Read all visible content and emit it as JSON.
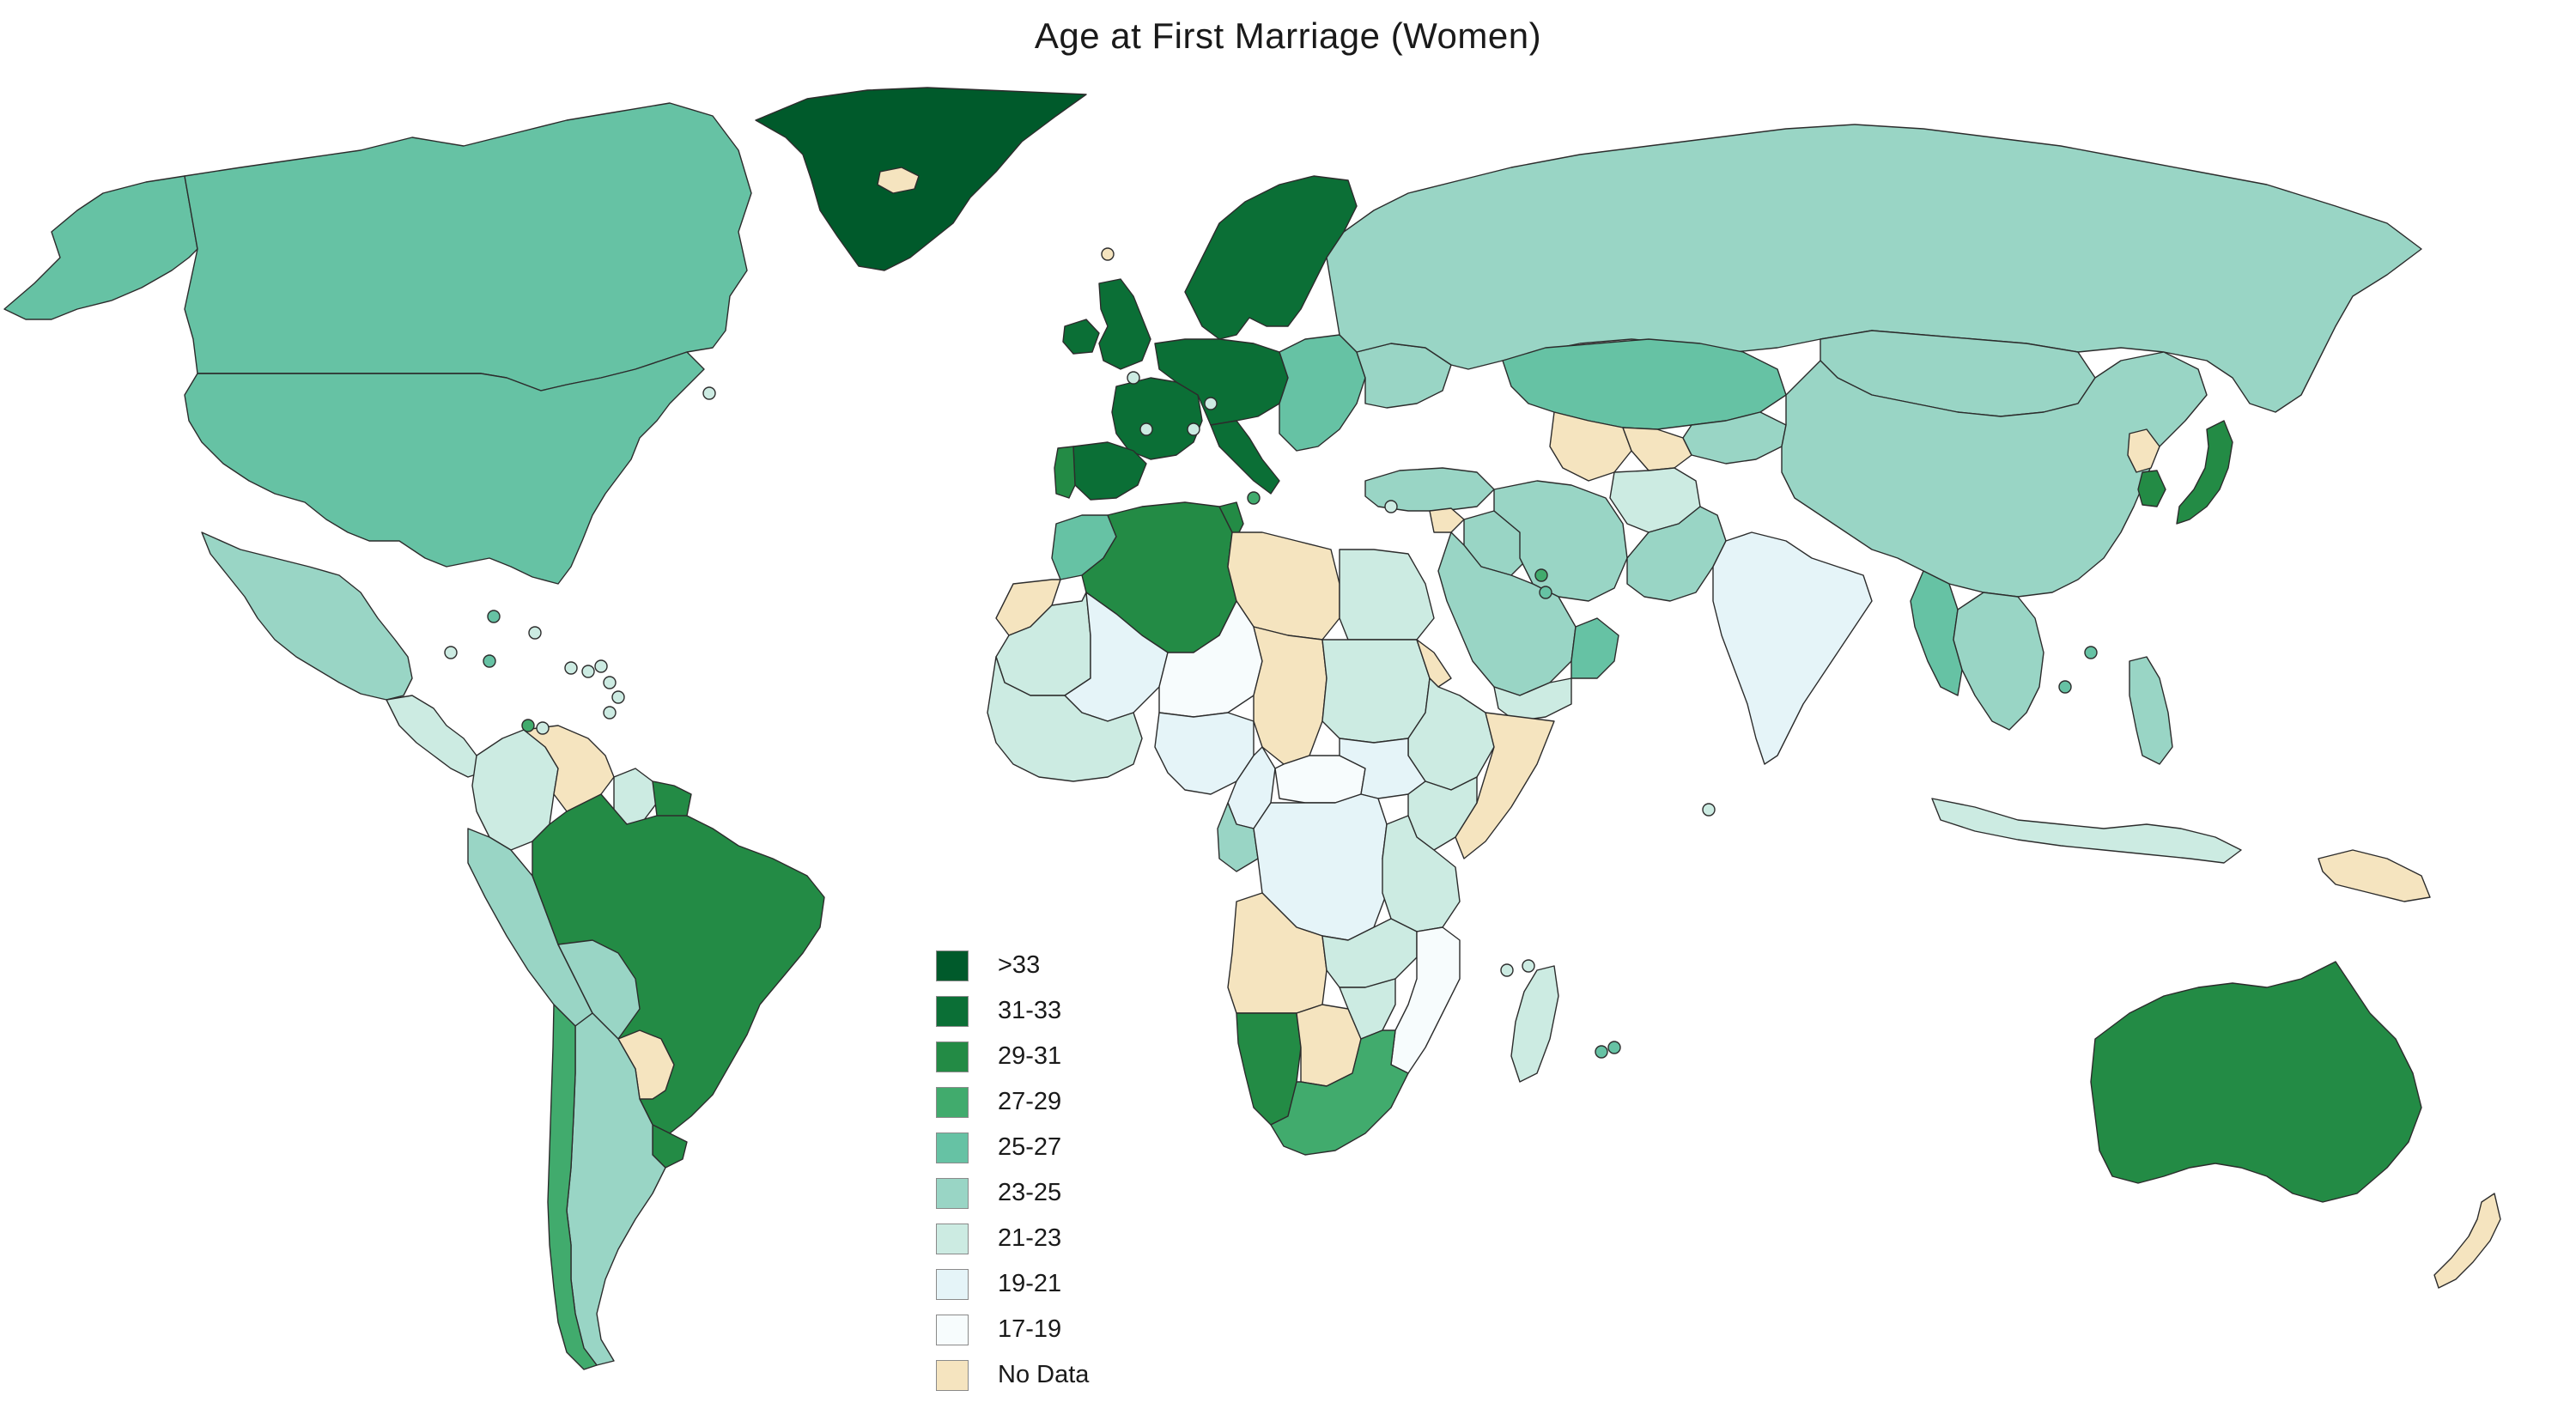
{
  "title": "Age at First Marriage (Women)",
  "legend": [
    {
      "label": ">33",
      "color": "#005a2b"
    },
    {
      "label": "31-33",
      "color": "#0b6f36"
    },
    {
      "label": "29-31",
      "color": "#238b45"
    },
    {
      "label": "27-29",
      "color": "#41ab6d"
    },
    {
      "label": "25-27",
      "color": "#66c2a4"
    },
    {
      "label": "23-25",
      "color": "#99d5c5"
    },
    {
      "label": "21-23",
      "color": "#ccebe2"
    },
    {
      "label": "19-21",
      "color": "#e5f4f8"
    },
    {
      "label": "17-19",
      "color": "#f7fcfd"
    },
    {
      "label": "No Data",
      "color": "#f5e4bf"
    }
  ],
  "regions": [
    {
      "name": "Greenland",
      "bin": ">33"
    },
    {
      "name": "Canada",
      "bin": "25-27"
    },
    {
      "name": "Alaska",
      "bin": "25-27"
    },
    {
      "name": "United States",
      "bin": "25-27"
    },
    {
      "name": "Mexico",
      "bin": "23-25"
    },
    {
      "name": "Central America",
      "bin": "21-23"
    },
    {
      "name": "Venezuela",
      "bin": "No Data"
    },
    {
      "name": "Colombia",
      "bin": "21-23"
    },
    {
      "name": "Peru",
      "bin": "23-25"
    },
    {
      "name": "Brazil",
      "bin": "29-31"
    },
    {
      "name": "Bolivia",
      "bin": "23-25"
    },
    {
      "name": "Paraguay",
      "bin": "No Data"
    },
    {
      "name": "Argentina",
      "bin": "23-25"
    },
    {
      "name": "Chile",
      "bin": "27-29"
    },
    {
      "name": "Uruguay",
      "bin": "29-31"
    },
    {
      "name": "Guyana",
      "bin": "21-23"
    },
    {
      "name": "Suriname",
      "bin": "29-31"
    },
    {
      "name": "Iceland",
      "bin": "No Data"
    },
    {
      "name": "Scandinavia",
      "bin": "31-33"
    },
    {
      "name": "United Kingdom",
      "bin": "31-33"
    },
    {
      "name": "Ireland",
      "bin": "31-33"
    },
    {
      "name": "France",
      "bin": "31-33"
    },
    {
      "name": "Spain",
      "bin": "31-33"
    },
    {
      "name": "Portugal",
      "bin": "29-31"
    },
    {
      "name": "Central Europe",
      "bin": "31-33"
    },
    {
      "name": "Italy",
      "bin": "31-33"
    },
    {
      "name": "Eastern Europe",
      "bin": "25-27"
    },
    {
      "name": "Ukraine",
      "bin": "23-25"
    },
    {
      "name": "Russia",
      "bin": "23-25"
    },
    {
      "name": "Kazakhstan",
      "bin": "25-27"
    },
    {
      "name": "Turkmenistan",
      "bin": "No Data"
    },
    {
      "name": "Uzbekistan",
      "bin": "No Data"
    },
    {
      "name": "Central Asia East",
      "bin": "23-25"
    },
    {
      "name": "Mongolia",
      "bin": "23-25"
    },
    {
      "name": "China",
      "bin": "23-25"
    },
    {
      "name": "North Korea",
      "bin": "No Data"
    },
    {
      "name": "South Korea",
      "bin": "29-31"
    },
    {
      "name": "Japan",
      "bin": "29-31"
    },
    {
      "name": "Turkey",
      "bin": "23-25"
    },
    {
      "name": "Iran",
      "bin": "23-25"
    },
    {
      "name": "Afghanistan",
      "bin": "21-23"
    },
    {
      "name": "Pakistan",
      "bin": "23-25"
    },
    {
      "name": "India",
      "bin": "19-21"
    },
    {
      "name": "Myanmar",
      "bin": "25-27"
    },
    {
      "name": "Southeast Asia",
      "bin": "23-25"
    },
    {
      "name": "Indonesia",
      "bin": "21-23"
    },
    {
      "name": "Philippines",
      "bin": "23-25"
    },
    {
      "name": "Papua New Guinea",
      "bin": "No Data"
    },
    {
      "name": "Australia",
      "bin": "29-31"
    },
    {
      "name": "New Zealand",
      "bin": "No Data"
    },
    {
      "name": "Saudi Arabia",
      "bin": "23-25"
    },
    {
      "name": "Oman",
      "bin": "25-27"
    },
    {
      "name": "Yemen",
      "bin": "21-23"
    },
    {
      "name": "Iraq",
      "bin": "23-25"
    },
    {
      "name": "Syria",
      "bin": "No Data"
    },
    {
      "name": "Morocco",
      "bin": "25-27"
    },
    {
      "name": "Western Sahara",
      "bin": "No Data"
    },
    {
      "name": "Algeria",
      "bin": "29-31"
    },
    {
      "name": "Tunisia",
      "bin": "29-31"
    },
    {
      "name": "Libya",
      "bin": "No Data"
    },
    {
      "name": "Egypt",
      "bin": "21-23"
    },
    {
      "name": "Mauritania",
      "bin": "21-23"
    },
    {
      "name": "Mali",
      "bin": "19-21"
    },
    {
      "name": "Niger",
      "bin": "17-19"
    },
    {
      "name": "Chad",
      "bin": "No Data"
    },
    {
      "name": "Sudan",
      "bin": "21-23"
    },
    {
      "name": "Eritrea",
      "bin": "No Data"
    },
    {
      "name": "Ethiopia",
      "bin": "21-23"
    },
    {
      "name": "Somalia",
      "bin": "No Data"
    },
    {
      "name": "West Africa",
      "bin": "21-23"
    },
    {
      "name": "Nigeria",
      "bin": "19-21"
    },
    {
      "name": "Central African Rep.",
      "bin": "17-19"
    },
    {
      "name": "Cameroon",
      "bin": "19-21"
    },
    {
      "name": "Gabon",
      "bin": "23-25"
    },
    {
      "name": "DR Congo",
      "bin": "19-21"
    },
    {
      "name": "South Sudan",
      "bin": "19-21"
    },
    {
      "name": "Kenya",
      "bin": "21-23"
    },
    {
      "name": "Tanzania",
      "bin": "21-23"
    },
    {
      "name": "Angola",
      "bin": "No Data"
    },
    {
      "name": "Zambia",
      "bin": "21-23"
    },
    {
      "name": "Mozambique",
      "bin": "17-19"
    },
    {
      "name": "Madagascar",
      "bin": "21-23"
    },
    {
      "name": "Namibia",
      "bin": "29-31"
    },
    {
      "name": "Botswana",
      "bin": "No Data"
    },
    {
      "name": "Zimbabwe",
      "bin": "21-23"
    },
    {
      "name": "South Africa",
      "bin": "27-29"
    }
  ]
}
